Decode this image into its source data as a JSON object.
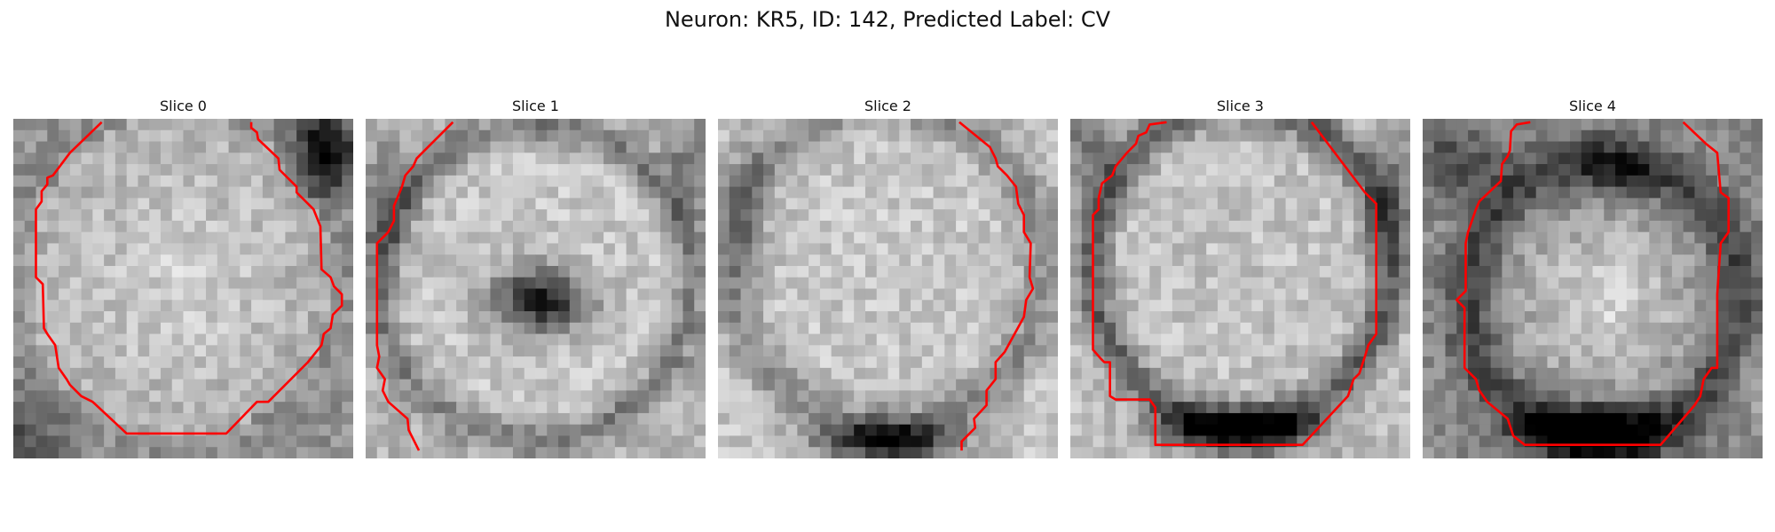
{
  "figure": {
    "title": "Neuron: KR5, ID: 142, Predicted Label: CV"
  },
  "slices": [
    {
      "title": "Slice 0"
    },
    {
      "title": "Slice 1"
    },
    {
      "title": "Slice 2"
    },
    {
      "title": "Slice 3"
    },
    {
      "title": "Slice 4"
    }
  ],
  "colors": {
    "contour": "#ff0000",
    "background": "#ffffff"
  }
}
